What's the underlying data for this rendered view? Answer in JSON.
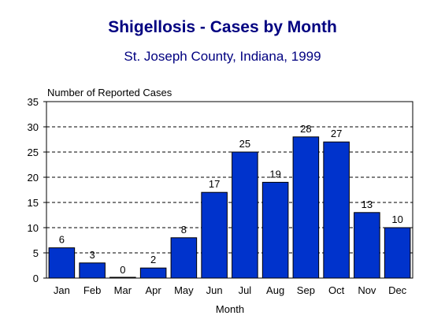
{
  "chart_data": {
    "type": "bar",
    "title": "Shigellosis - Cases by Month",
    "subtitle": "St. Joseph County, Indiana, 1999",
    "ylabel": "Number of Reported Cases",
    "xlabel": "Month",
    "ylim": [
      0,
      35
    ],
    "yticks": [
      0,
      5,
      10,
      15,
      20,
      25,
      30,
      35
    ],
    "grid": "horizontal dashed",
    "categories": [
      "Jan",
      "Feb",
      "Mar",
      "Apr",
      "May",
      "Jun",
      "Jul",
      "Aug",
      "Sep",
      "Oct",
      "Nov",
      "Dec"
    ],
    "values": [
      6,
      3,
      0,
      2,
      8,
      17,
      25,
      19,
      28,
      27,
      13,
      10
    ],
    "bar_color": "#0033CC"
  }
}
